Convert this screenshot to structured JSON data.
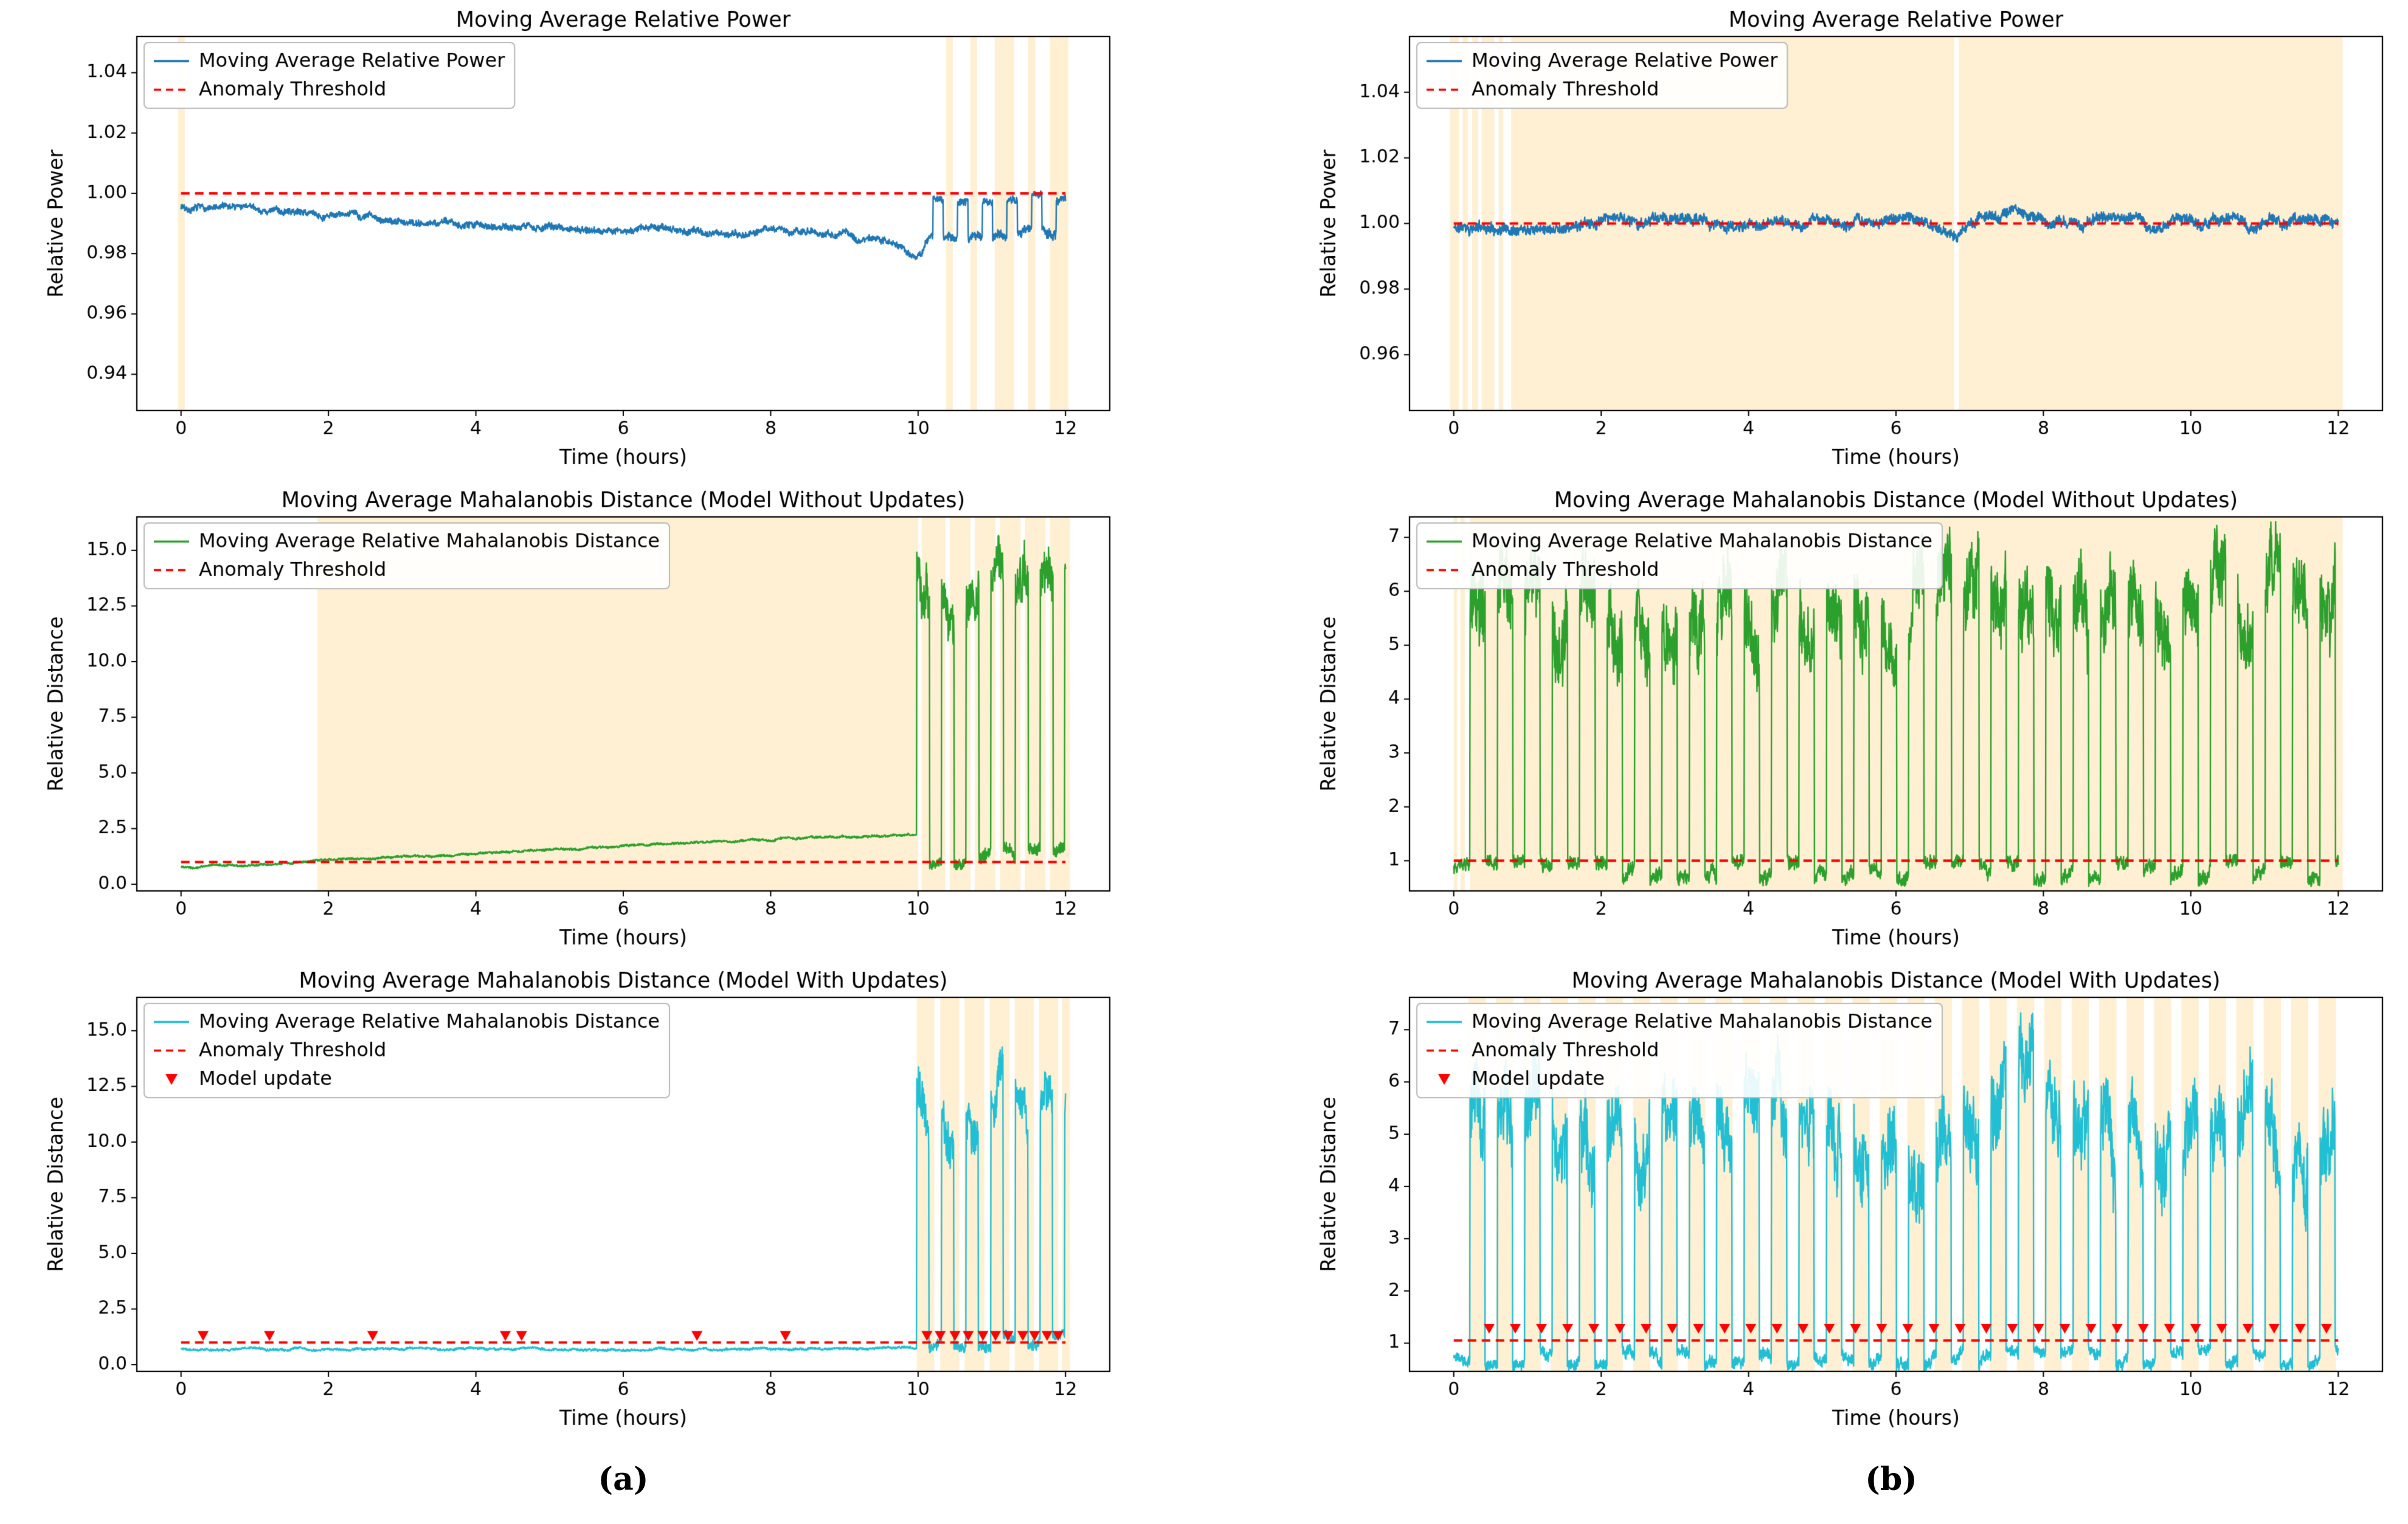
{
  "captions": {
    "a": "(a)",
    "b": "(b)"
  },
  "colors": {
    "blue": "#1f77b4",
    "green": "#2ca02c",
    "cyan": "#22bfd4",
    "red": "#ff0000",
    "band": "#ffa500",
    "text": "#000000"
  },
  "chart_data": [
    {
      "id": "a1",
      "col": "left",
      "type": "line",
      "title": "Moving Average Relative Power",
      "xlabel": "Time (hours)",
      "ylabel": "Relative Power",
      "xlim": [
        -0.6,
        12.6
      ],
      "xticks": [
        0,
        2,
        4,
        6,
        8,
        10,
        12
      ],
      "ylim": [
        0.928,
        1.052
      ],
      "yticks": [
        0.94,
        0.96,
        0.98,
        1.0,
        1.02,
        1.04
      ],
      "ydecimals": 2,
      "threshold": 1.0,
      "bands": [
        [
          -0.04,
          0.05
        ],
        [
          10.38,
          10.47
        ],
        [
          10.71,
          10.8
        ],
        [
          11.04,
          11.3
        ],
        [
          11.49,
          11.59
        ],
        [
          11.79,
          12.04
        ]
      ],
      "series": {
        "color": "blue",
        "noise": 0.0011,
        "seed": 7,
        "xdata": [
          0,
          12.0
        ],
        "anchors": [
          [
            0,
            0.9958
          ],
          [
            0.5,
            0.9952
          ],
          [
            1,
            0.9945
          ],
          [
            1.5,
            0.9938
          ],
          [
            2,
            0.993
          ],
          [
            3,
            0.9915
          ],
          [
            4,
            0.9903
          ],
          [
            5,
            0.9893
          ],
          [
            6,
            0.9886
          ],
          [
            7,
            0.9878
          ],
          [
            8,
            0.9872
          ],
          [
            9,
            0.9862
          ],
          [
            9.5,
            0.9845
          ],
          [
            9.8,
            0.9825
          ],
          [
            9.95,
            0.98
          ],
          [
            10.05,
            0.981
          ],
          [
            10.18,
            0.986
          ]
        ],
        "bursts": {
          "start": 10.2,
          "end": 12.05,
          "period": 0.335,
          "duty": 0.42,
          "high": 0.9985,
          "low": 0.9868,
          "high_noise": 0.0012,
          "low_noise": 0.0016
        }
      },
      "legend": [
        {
          "style": "line",
          "color": "blue",
          "label": "Moving Average Relative Power"
        },
        {
          "style": "dashed",
          "color": "red",
          "label": "Anomaly Threshold"
        }
      ]
    },
    {
      "id": "b1",
      "col": "right",
      "type": "line",
      "title": "Moving Average Relative Power",
      "xlabel": "Time (hours)",
      "ylabel": "Relative Power",
      "xlim": [
        -0.6,
        12.6
      ],
      "xticks": [
        0,
        2,
        4,
        6,
        8,
        10,
        12
      ],
      "ylim": [
        0.943,
        1.057
      ],
      "yticks": [
        0.96,
        0.98,
        1.0,
        1.02,
        1.04
      ],
      "ydecimals": 2,
      "threshold": 1.0,
      "bands": [
        [
          -0.05,
          0.07
        ],
        [
          0.12,
          0.19
        ],
        [
          0.25,
          0.33
        ],
        [
          0.38,
          0.55
        ],
        [
          0.61,
          0.67
        ],
        [
          0.78,
          6.79
        ],
        [
          6.85,
          12.06
        ]
      ],
      "series": {
        "color": "blue",
        "noise": 0.0016,
        "seed": 11,
        "xdata": [
          0,
          12.0
        ],
        "anchors": [
          [
            0,
            0.9985
          ],
          [
            0.4,
            0.9993
          ],
          [
            1,
            1.0
          ],
          [
            1.5,
            1.0002
          ],
          [
            2,
            0.9998
          ],
          [
            2.5,
            1.0003
          ],
          [
            3,
            1.0
          ],
          [
            3.5,
            0.9997
          ],
          [
            4,
            1.0004
          ],
          [
            4.5,
            1.0
          ],
          [
            5,
            1.0002
          ],
          [
            5.5,
            0.9998
          ],
          [
            6,
            1.0003
          ],
          [
            6.5,
            0.9999
          ],
          [
            6.8,
            0.9968
          ],
          [
            6.9,
            0.999
          ],
          [
            7,
            1.0002
          ],
          [
            7.4,
            1.0008
          ],
          [
            7.7,
            1.004
          ],
          [
            7.9,
            1.0035
          ],
          [
            8.1,
            1.001
          ],
          [
            8.5,
            1.0004
          ],
          [
            9,
            1.0
          ],
          [
            9.5,
            1.0002
          ],
          [
            10,
            0.9998
          ],
          [
            10.5,
            1.0001
          ],
          [
            11,
            0.9999
          ],
          [
            11.5,
            1.0
          ],
          [
            12,
            0.9993
          ]
        ]
      },
      "legend": [
        {
          "style": "line",
          "color": "blue",
          "label": "Moving Average Relative Power"
        },
        {
          "style": "dashed",
          "color": "red",
          "label": "Anomaly Threshold"
        }
      ]
    },
    {
      "id": "a2",
      "col": "left",
      "type": "line",
      "title": "Moving Average Mahalanobis Distance (Model Without Updates)",
      "xlabel": "Time (hours)",
      "ylabel": "Relative Distance",
      "xlim": [
        -0.6,
        12.6
      ],
      "xticks": [
        0,
        2,
        4,
        6,
        8,
        10,
        12
      ],
      "ylim": [
        -0.3,
        16.5
      ],
      "yticks": [
        0.0,
        2.5,
        5.0,
        7.5,
        10.0,
        12.5,
        15.0
      ],
      "ydecimals": 1,
      "threshold": 1.0,
      "bands": [
        [
          1.85,
          10.0
        ],
        [
          10.05,
          10.37
        ],
        [
          10.43,
          10.71
        ],
        [
          10.77,
          11.05
        ],
        [
          11.11,
          11.39
        ],
        [
          11.45,
          11.73
        ],
        [
          11.79,
          12.06
        ]
      ],
      "series": {
        "color": "green",
        "noise": 0.05,
        "seed": 21,
        "xdata": [
          0,
          12.0
        ],
        "anchors": [
          [
            0,
            0.78
          ],
          [
            0.5,
            0.82
          ],
          [
            1,
            0.9
          ],
          [
            1.5,
            0.97
          ],
          [
            2,
            1.05
          ],
          [
            2.5,
            1.12
          ],
          [
            3,
            1.2
          ],
          [
            3.5,
            1.28
          ],
          [
            4,
            1.35
          ],
          [
            4.5,
            1.42
          ],
          [
            5,
            1.52
          ],
          [
            5.5,
            1.6
          ],
          [
            6,
            1.68
          ],
          [
            6.5,
            1.76
          ],
          [
            7,
            1.84
          ],
          [
            7.5,
            1.92
          ],
          [
            8,
            2.0
          ],
          [
            8.5,
            2.08
          ],
          [
            9,
            2.15
          ],
          [
            9.5,
            2.2
          ],
          [
            9.97,
            2.3
          ]
        ],
        "bursts": {
          "start": 9.98,
          "end": 12.05,
          "period": 0.335,
          "duty": 0.52,
          "high_anchors": [
            [
              9.98,
              14.2
            ],
            [
              10.4,
              13.0
            ],
            [
              11.0,
              13.4
            ],
            [
              11.6,
              13.2
            ],
            [
              12.05,
              13.4
            ]
          ],
          "low": 1.25,
          "high_noise": 1.1,
          "low_noise": 0.3
        }
      },
      "legend": [
        {
          "style": "line",
          "color": "green",
          "label": "Moving Average Relative Mahalanobis Distance"
        },
        {
          "style": "dashed",
          "color": "red",
          "label": "Anomaly Threshold"
        }
      ]
    },
    {
      "id": "b2",
      "col": "right",
      "type": "line",
      "title": "Moving Average Mahalanobis Distance (Model Without Updates)",
      "xlabel": "Time (hours)",
      "ylabel": "Relative Distance",
      "xlim": [
        -0.6,
        12.6
      ],
      "xticks": [
        0,
        2,
        4,
        6,
        8,
        10,
        12
      ],
      "ylim": [
        0.44,
        7.38
      ],
      "yticks": [
        1,
        2,
        3,
        4,
        5,
        6,
        7
      ],
      "ydecimals": 0,
      "threshold": 1.0,
      "bands": [
        [
          0.0,
          0.05
        ],
        [
          0.09,
          0.15
        ],
        [
          0.22,
          12.06
        ]
      ],
      "series": {
        "color": "green",
        "noise": 0.12,
        "seed": 33,
        "xdata": [
          0,
          12.0
        ],
        "anchors": [
          [
            0,
            0.85
          ]
        ],
        "bursts": {
          "start": 0.22,
          "end": 12.05,
          "period": 0.372,
          "duty": 0.56,
          "high_anchors": [
            [
              0.22,
              5.5
            ],
            [
              1,
              5.6
            ],
            [
              2,
              5.4
            ],
            [
              3,
              5.7
            ],
            [
              4,
              5.5
            ],
            [
              5,
              5.6
            ],
            [
              6,
              5.5
            ],
            [
              7,
              5.8
            ],
            [
              8,
              6.0
            ],
            [
              9,
              5.8
            ],
            [
              10,
              5.9
            ],
            [
              11,
              5.8
            ],
            [
              12,
              5.9
            ]
          ],
          "low": 0.82,
          "high_noise": 0.7,
          "low_noise": 0.14
        }
      },
      "legend": [
        {
          "style": "line",
          "color": "green",
          "label": "Moving Average Relative Mahalanobis Distance"
        },
        {
          "style": "dashed",
          "color": "red",
          "label": "Anomaly Threshold"
        }
      ]
    },
    {
      "id": "a3",
      "col": "left",
      "type": "line",
      "title": "Moving Average Mahalanobis Distance (Model With Updates)",
      "xlabel": "Time (hours)",
      "ylabel": "Relative Distance",
      "xlim": [
        -0.6,
        12.6
      ],
      "xticks": [
        0,
        2,
        4,
        6,
        8,
        10,
        12
      ],
      "ylim": [
        -0.3,
        16.5
      ],
      "yticks": [
        0.0,
        2.5,
        5.0,
        7.5,
        10.0,
        12.5,
        15.0
      ],
      "ydecimals": 1,
      "threshold": 1.0,
      "bands": [
        [
          9.98,
          10.22
        ],
        [
          10.3,
          10.56
        ],
        [
          10.63,
          10.9
        ],
        [
          10.97,
          11.24
        ],
        [
          11.31,
          11.57
        ],
        [
          11.64,
          11.9
        ],
        [
          11.95,
          12.06
        ]
      ],
      "series": {
        "color": "cyan",
        "noise": 0.05,
        "seed": 45,
        "xdata": [
          0,
          12.0
        ],
        "anchors": [
          [
            0,
            0.72
          ],
          [
            2,
            0.7
          ],
          [
            4,
            0.72
          ],
          [
            6,
            0.7
          ],
          [
            8,
            0.72
          ],
          [
            9.95,
            0.73
          ]
        ],
        "bursts": {
          "start": 9.98,
          "end": 12.05,
          "period": 0.335,
          "duty": 0.5,
          "high_anchors": [
            [
              9.98,
              12.4
            ],
            [
              10.4,
              10.6
            ],
            [
              10.8,
              11.6
            ],
            [
              11.2,
              12.6
            ],
            [
              11.6,
              11.2
            ],
            [
              12.05,
              10.9
            ]
          ],
          "low": 1.05,
          "high_noise": 1.0,
          "low_noise": 0.25
        }
      },
      "markers": {
        "color": "red",
        "y": 1.3,
        "x": [
          0.3,
          1.2,
          2.6,
          4.4,
          4.62,
          7.0,
          8.2,
          10.12,
          10.3,
          10.5,
          10.68,
          10.88,
          11.05,
          11.22,
          11.42,
          11.58,
          11.75,
          11.9
        ]
      },
      "legend": [
        {
          "style": "line",
          "color": "cyan",
          "label": "Moving Average Relative Mahalanobis Distance"
        },
        {
          "style": "dashed",
          "color": "red",
          "label": "Anomaly Threshold"
        },
        {
          "style": "triangle",
          "color": "red",
          "label": "Model update"
        }
      ]
    },
    {
      "id": "b3",
      "col": "right",
      "type": "line",
      "title": "Moving Average Mahalanobis Distance (Model With Updates)",
      "xlabel": "Time (hours)",
      "ylabel": "Relative Distance",
      "xlim": [
        -0.6,
        12.6
      ],
      "xticks": [
        0,
        2,
        4,
        6,
        8,
        10,
        12
      ],
      "ylim": [
        0.46,
        7.62
      ],
      "yticks": [
        1,
        2,
        3,
        4,
        5,
        6,
        7
      ],
      "ydecimals": 0,
      "threshold": 1.05,
      "bands": {
        "periodic": {
          "start": 0.2,
          "period": 0.372,
          "width": 0.235,
          "count": 32
        }
      },
      "series": {
        "color": "cyan",
        "noise": 0.1,
        "seed": 57,
        "xdata": [
          0,
          12.0
        ],
        "anchors": [
          [
            0,
            0.75
          ]
        ],
        "bursts": {
          "start": 0.22,
          "end": 12.05,
          "period": 0.372,
          "duty": 0.55,
          "high_anchors": [
            [
              0.22,
              5.9
            ],
            [
              1.2,
              5.3
            ],
            [
              2.5,
              5.0
            ],
            [
              3.5,
              5.8
            ],
            [
              4.5,
              5.4
            ],
            [
              5.5,
              4.9
            ],
            [
              6.2,
              4.6
            ],
            [
              7.0,
              5.3
            ],
            [
              7.6,
              6.3
            ],
            [
              8.3,
              5.6
            ],
            [
              9.0,
              4.7
            ],
            [
              9.8,
              4.4
            ],
            [
              10.6,
              5.3
            ],
            [
              11.3,
              4.9
            ],
            [
              12.05,
              4.3
            ]
          ],
          "low": 0.72,
          "high_noise": 0.75,
          "low_noise": 0.12
        }
      },
      "markers": {
        "color": "red",
        "y": 1.28,
        "periodic": {
          "start": 0.48,
          "period": 0.355,
          "count": 33
        }
      },
      "legend": [
        {
          "style": "line",
          "color": "cyan",
          "label": "Moving Average Relative Mahalanobis Distance"
        },
        {
          "style": "dashed",
          "color": "red",
          "label": "Anomaly Threshold"
        },
        {
          "style": "triangle",
          "color": "red",
          "label": "Model update"
        }
      ]
    }
  ]
}
